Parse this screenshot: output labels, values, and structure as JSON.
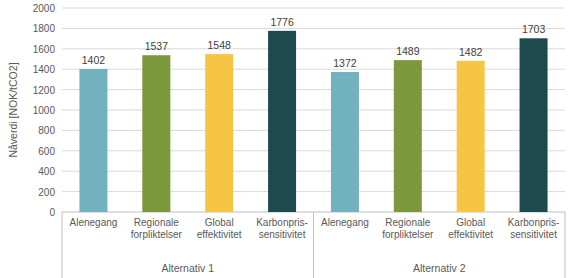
{
  "chart_data": {
    "type": "bar",
    "y_label": "Nåverdi [NOK/tCO2]",
    "categories": [
      "Alenegang",
      "Regionale\nforpliktelser",
      "Global\neffektivitet",
      "Karbonpris-\nsensitivitet",
      "Alenegang",
      "Regionale\nforpliktelser",
      "Global\neffektivitet",
      "Karbonpris-\nsensitivitet"
    ],
    "groups": [
      "Alternativ 1",
      "Alternativ 2"
    ],
    "values": [
      1402,
      1537,
      1548,
      1776,
      1372,
      1489,
      1482,
      1703
    ],
    "colors": [
      "#72b1be",
      "#7b983a",
      "#f7c544",
      "#1d4a4e",
      "#72b1be",
      "#7b983a",
      "#f7c544",
      "#1d4a4e"
    ],
    "ylim": [
      0,
      2000
    ],
    "yticks": [
      0,
      200,
      400,
      600,
      800,
      1000,
      1200,
      1400,
      1600,
      1800,
      2000
    ],
    "grid": true,
    "data_labels": true
  }
}
